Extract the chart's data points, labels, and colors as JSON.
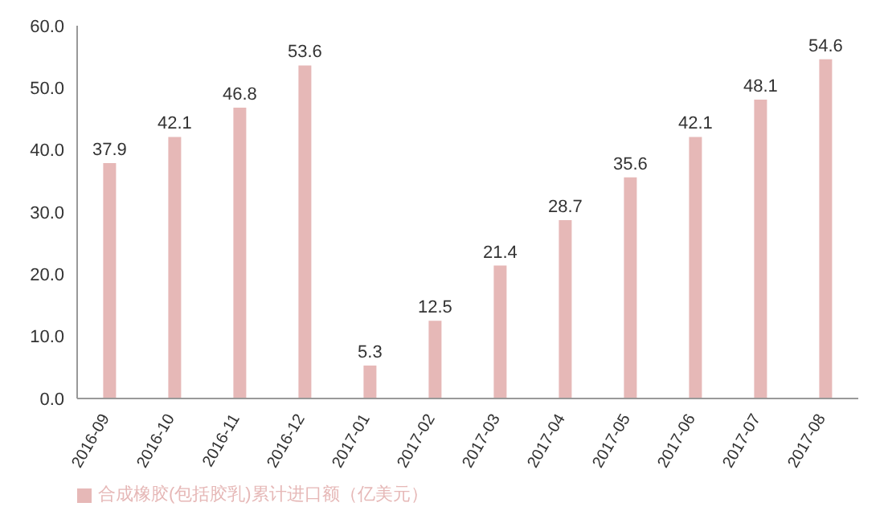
{
  "chart_data": {
    "type": "bar",
    "categories": [
      "2016-09",
      "2016-10",
      "2016-11",
      "2016-12",
      "2017-01",
      "2017-02",
      "2017-03",
      "2017-04",
      "2017-05",
      "2017-06",
      "2017-07",
      "2017-08"
    ],
    "series": [
      {
        "name": "合成橡胶(包括胶乳)累计进口额（亿美元）",
        "color": "#e6b8b7",
        "values": [
          37.9,
          42.1,
          46.8,
          53.6,
          5.3,
          12.5,
          21.4,
          28.7,
          35.6,
          42.1,
          48.1,
          54.6
        ]
      }
    ],
    "ylim": [
      0,
      60
    ],
    "yticks": [
      {
        "value": 0,
        "label": "0.0"
      },
      {
        "value": 10,
        "label": "10.0"
      },
      {
        "value": 20,
        "label": "20.0"
      },
      {
        "value": 30,
        "label": "30.0"
      },
      {
        "value": 40,
        "label": "40.0"
      },
      {
        "value": 50,
        "label": "50.0"
      },
      {
        "value": 60,
        "label": "60.0"
      }
    ],
    "data_labels": true,
    "legend": "bottom",
    "grid": false
  }
}
